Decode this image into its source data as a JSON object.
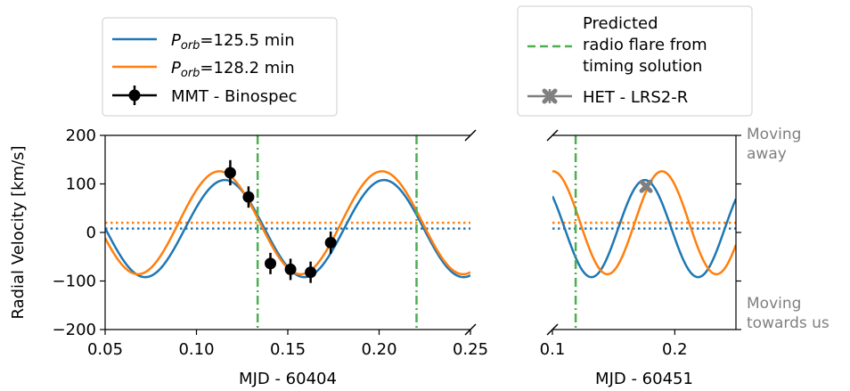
{
  "chart_data": [
    {
      "type": "line",
      "panel": "left",
      "xlabel": "MJD - 60404",
      "ylabel": "Radial Velocity [km/s]",
      "xlim": [
        0.05,
        0.25
      ],
      "ylim": [
        -200,
        200
      ],
      "xticks": [
        0.05,
        0.1,
        0.15,
        0.2,
        0.25
      ],
      "xtick_labels": [
        "0.05",
        "0.10",
        "0.15",
        "0.20",
        "0.25"
      ],
      "yticks": [
        -200,
        -100,
        0,
        100,
        200
      ],
      "ytick_labels": [
        "−200",
        "−100",
        "0",
        "100",
        "200"
      ],
      "series": [
        {
          "name": "P_orb=125.5 min",
          "kind": "sinusoid",
          "color": "#1f77b4",
          "period_min": 125.5,
          "offset": 8,
          "amplitude": 100,
          "peak_x": 0.1155
        },
        {
          "name": "P_orb=128.2 min",
          "kind": "sinusoid",
          "color": "#ff7f0e",
          "period_min": 128.2,
          "offset": 20,
          "amplitude": 106,
          "peak_x": 0.1125
        },
        {
          "name": "MMT - Binospec",
          "kind": "errorbar",
          "color": "#000000",
          "x": [
            0.1185,
            0.1285,
            0.1405,
            0.1515,
            0.1625,
            0.1735
          ],
          "y": [
            123,
            73,
            -64,
            -76,
            -82,
            -21
          ],
          "yerr": [
            26,
            22,
            22,
            22,
            22,
            23
          ]
        }
      ],
      "hlines": [
        {
          "y": 8,
          "color": "#1f77b4",
          "style": "dotted"
        },
        {
          "y": 20,
          "color": "#ff7f0e",
          "style": "dotted"
        }
      ],
      "vlines": [
        {
          "x": 0.1335,
          "color": "#4caf50",
          "style": "dashdot"
        },
        {
          "x": 0.2205,
          "color": "#4caf50",
          "style": "dashdot"
        }
      ]
    },
    {
      "type": "line",
      "panel": "right",
      "xlabel": "MJD - 60451",
      "xlim": [
        0.1,
        0.25
      ],
      "ylim": [
        -200,
        200
      ],
      "xticks": [
        0.1,
        0.2
      ],
      "xtick_labels": [
        "0.1",
        "0.2"
      ],
      "series": [
        {
          "name": "P_orb=125.5 min",
          "kind": "sinusoid",
          "color": "#1f77b4",
          "period_min": 125.5,
          "offset": 8,
          "amplitude": 100,
          "peak_x": 0.1755
        },
        {
          "name": "P_orb=128.2 min",
          "kind": "sinusoid",
          "color": "#ff7f0e",
          "period_min": 128.2,
          "offset": 20,
          "amplitude": 106,
          "peak_x": 0.1895
        },
        {
          "name": "HET - LRS2-R",
          "kind": "errorbar",
          "color": "#7f7f7f",
          "x": [
            0.1765
          ],
          "y": [
            95
          ],
          "yerr": [
            6
          ]
        }
      ],
      "hlines": [
        {
          "y": 8,
          "color": "#1f77b4",
          "style": "dotted"
        },
        {
          "y": 20,
          "color": "#ff7f0e",
          "style": "dotted"
        }
      ],
      "vlines": [
        {
          "x": 0.119,
          "color": "#4caf50",
          "style": "dashdot"
        }
      ],
      "annotations": [
        {
          "text": [
            "Moving",
            "away"
          ],
          "color": "#7f7f7f"
        },
        {
          "text": [
            "Moving",
            "towards us"
          ],
          "color": "#7f7f7f"
        }
      ]
    }
  ],
  "legend_left": {
    "items": [
      {
        "prefix": "P",
        "sub": "orb",
        "suffix": "=125.5 min",
        "color": "#1f77b4",
        "kind": "line"
      },
      {
        "prefix": "P",
        "sub": "orb",
        "suffix": "=128.2 min",
        "color": "#ff7f0e",
        "kind": "line"
      },
      {
        "label": "MMT - Binospec",
        "color": "#000000",
        "kind": "errorbar"
      }
    ]
  },
  "legend_right": {
    "items": [
      {
        "lines": [
          "Predicted",
          "radio flare from",
          "timing solution"
        ],
        "color": "#4caf50",
        "kind": "dashed"
      },
      {
        "label": "HET - LRS2-R",
        "color": "#7f7f7f",
        "kind": "errorbar-x"
      }
    ]
  }
}
